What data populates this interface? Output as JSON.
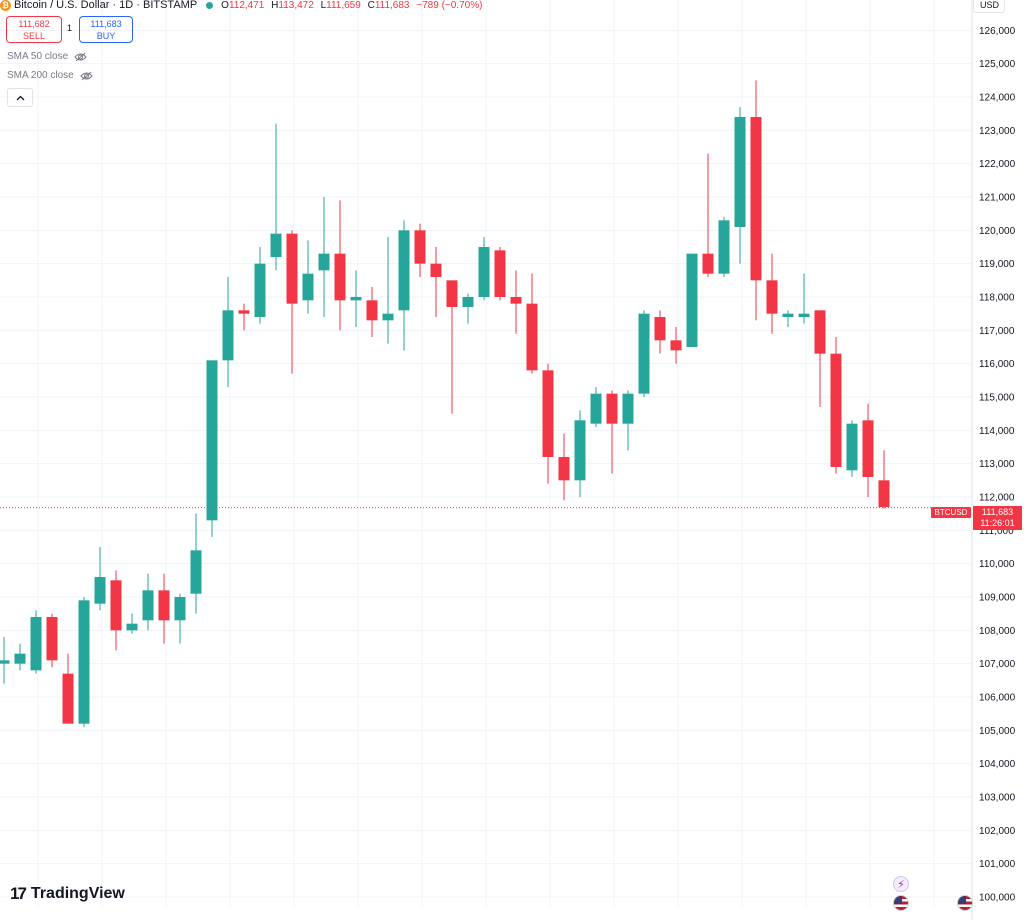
{
  "header": {
    "logo_glyph": "₿",
    "title": "Bitcoin / U.S. Dollar · 1D · BITSTAMP",
    "open_label": "O",
    "open": "112,471",
    "high_label": "H",
    "high": "113,472",
    "low_label": "L",
    "low": "111,659",
    "close_label": "C",
    "close": "111,683",
    "change": "−789 (−0.70%)"
  },
  "trade": {
    "sell_price": "111,682",
    "sell_label": "SELL",
    "spread": "1",
    "buy_price": "111,683",
    "buy_label": "BUY"
  },
  "indicators": [
    {
      "label": "SMA 50 close"
    },
    {
      "label": "SMA 200 close"
    }
  ],
  "currency": "USD",
  "last_price": {
    "symbol": "BTCUSD",
    "price": "111,683",
    "countdown": "11:26:01"
  },
  "brand": {
    "name": "TradingView"
  },
  "colors": {
    "up": "#26a69a",
    "down": "#f23645",
    "grid": "#f0f3fa",
    "price_line": "#f23645"
  },
  "chart_data": {
    "type": "candlestick",
    "symbol": "BTCUSD",
    "y_ticks": [
      100000,
      101000,
      102000,
      103000,
      104000,
      105000,
      106000,
      107000,
      108000,
      109000,
      110000,
      111000,
      112000,
      113000,
      114000,
      115000,
      116000,
      117000,
      118000,
      119000,
      120000,
      121000,
      122000,
      123000,
      124000,
      125000,
      126000
    ],
    "y_tick_labels": [
      "100,000",
      "101,000",
      "102,000",
      "103,000",
      "104,000",
      "105,000",
      "106,000",
      "107,000",
      "108,000",
      "109,000",
      "110,000",
      "111,000",
      "112,000",
      "113,000",
      "114,000",
      "115,000",
      "116,000",
      "117,000",
      "118,000",
      "119,000",
      "120,000",
      "121,000",
      "122,000",
      "123,000",
      "124,000",
      "125,000",
      "126,000"
    ],
    "ylim": [
      99700,
      127000
    ],
    "last_close": 111683,
    "candles": [
      {
        "o": 107000,
        "h": 107800,
        "l": 106400,
        "c": 107100
      },
      {
        "o": 107000,
        "h": 107600,
        "l": 106800,
        "c": 107300
      },
      {
        "o": 106800,
        "h": 108600,
        "l": 106700,
        "c": 108400
      },
      {
        "o": 108400,
        "h": 108500,
        "l": 106900,
        "c": 107100
      },
      {
        "o": 106700,
        "h": 107300,
        "l": 105300,
        "c": 105200
      },
      {
        "o": 105200,
        "h": 109000,
        "l": 105100,
        "c": 108900
      },
      {
        "o": 108800,
        "h": 110500,
        "l": 108600,
        "c": 109600
      },
      {
        "o": 109500,
        "h": 109800,
        "l": 107400,
        "c": 108000
      },
      {
        "o": 108000,
        "h": 108500,
        "l": 107900,
        "c": 108200
      },
      {
        "o": 108300,
        "h": 109700,
        "l": 108000,
        "c": 109200
      },
      {
        "o": 109200,
        "h": 109700,
        "l": 107600,
        "c": 108300
      },
      {
        "o": 108300,
        "h": 109100,
        "l": 107600,
        "c": 109000
      },
      {
        "o": 109100,
        "h": 111500,
        "l": 108500,
        "c": 110400
      },
      {
        "o": 111300,
        "h": 116100,
        "l": 110800,
        "c": 116100
      },
      {
        "o": 116100,
        "h": 118600,
        "l": 115300,
        "c": 117600
      },
      {
        "o": 117600,
        "h": 117800,
        "l": 117000,
        "c": 117500
      },
      {
        "o": 117400,
        "h": 119500,
        "l": 117200,
        "c": 119000
      },
      {
        "o": 119200,
        "h": 123200,
        "l": 118800,
        "c": 119900
      },
      {
        "o": 119900,
        "h": 120000,
        "l": 115700,
        "c": 117800
      },
      {
        "o": 117900,
        "h": 119700,
        "l": 117500,
        "c": 118700
      },
      {
        "o": 118800,
        "h": 121000,
        "l": 117400,
        "c": 119300
      },
      {
        "o": 119300,
        "h": 120900,
        "l": 117000,
        "c": 117900
      },
      {
        "o": 117900,
        "h": 118800,
        "l": 117100,
        "c": 118000
      },
      {
        "o": 117900,
        "h": 118300,
        "l": 116800,
        "c": 117300
      },
      {
        "o": 117300,
        "h": 119800,
        "l": 116600,
        "c": 117500
      },
      {
        "o": 117600,
        "h": 120300,
        "l": 116400,
        "c": 120000
      },
      {
        "o": 120000,
        "h": 120200,
        "l": 118600,
        "c": 119000
      },
      {
        "o": 119000,
        "h": 119500,
        "l": 117400,
        "c": 118600
      },
      {
        "o": 118500,
        "h": 118500,
        "l": 114500,
        "c": 117700
      },
      {
        "o": 117700,
        "h": 118100,
        "l": 117200,
        "c": 118000
      },
      {
        "o": 118000,
        "h": 119800,
        "l": 117900,
        "c": 119500
      },
      {
        "o": 119400,
        "h": 119500,
        "l": 117900,
        "c": 118000
      },
      {
        "o": 118000,
        "h": 118800,
        "l": 116900,
        "c": 117800
      },
      {
        "o": 117800,
        "h": 118700,
        "l": 115700,
        "c": 115800
      },
      {
        "o": 115800,
        "h": 116000,
        "l": 112400,
        "c": 113200
      },
      {
        "o": 113200,
        "h": 113900,
        "l": 111900,
        "c": 112500
      },
      {
        "o": 112500,
        "h": 114600,
        "l": 112000,
        "c": 114300
      },
      {
        "o": 114200,
        "h": 115300,
        "l": 114100,
        "c": 115100
      },
      {
        "o": 115100,
        "h": 115200,
        "l": 112700,
        "c": 114200
      },
      {
        "o": 114200,
        "h": 115200,
        "l": 113400,
        "c": 115100
      },
      {
        "o": 115100,
        "h": 117600,
        "l": 115000,
        "c": 117500
      },
      {
        "o": 117400,
        "h": 117600,
        "l": 116300,
        "c": 116700
      },
      {
        "o": 116700,
        "h": 117100,
        "l": 116000,
        "c": 116400
      },
      {
        "o": 116500,
        "h": 119300,
        "l": 116500,
        "c": 119300
      },
      {
        "o": 119300,
        "h": 122300,
        "l": 118600,
        "c": 118700
      },
      {
        "o": 118700,
        "h": 120400,
        "l": 118600,
        "c": 120300
      },
      {
        "o": 120100,
        "h": 123700,
        "l": 119000,
        "c": 123400
      },
      {
        "o": 123400,
        "h": 124500,
        "l": 117300,
        "c": 118500
      },
      {
        "o": 118500,
        "h": 119300,
        "l": 116900,
        "c": 117500
      },
      {
        "o": 117400,
        "h": 117600,
        "l": 117100,
        "c": 117500
      },
      {
        "o": 117400,
        "h": 118700,
        "l": 117200,
        "c": 117500
      },
      {
        "o": 117600,
        "h": 117600,
        "l": 114700,
        "c": 116300
      },
      {
        "o": 116300,
        "h": 116800,
        "l": 112700,
        "c": 112900
      },
      {
        "o": 112800,
        "h": 114300,
        "l": 112600,
        "c": 114200
      },
      {
        "o": 114300,
        "h": 114800,
        "l": 112000,
        "c": 112600
      },
      {
        "o": 112500,
        "h": 113400,
        "l": 111650,
        "c": 111700
      }
    ]
  }
}
